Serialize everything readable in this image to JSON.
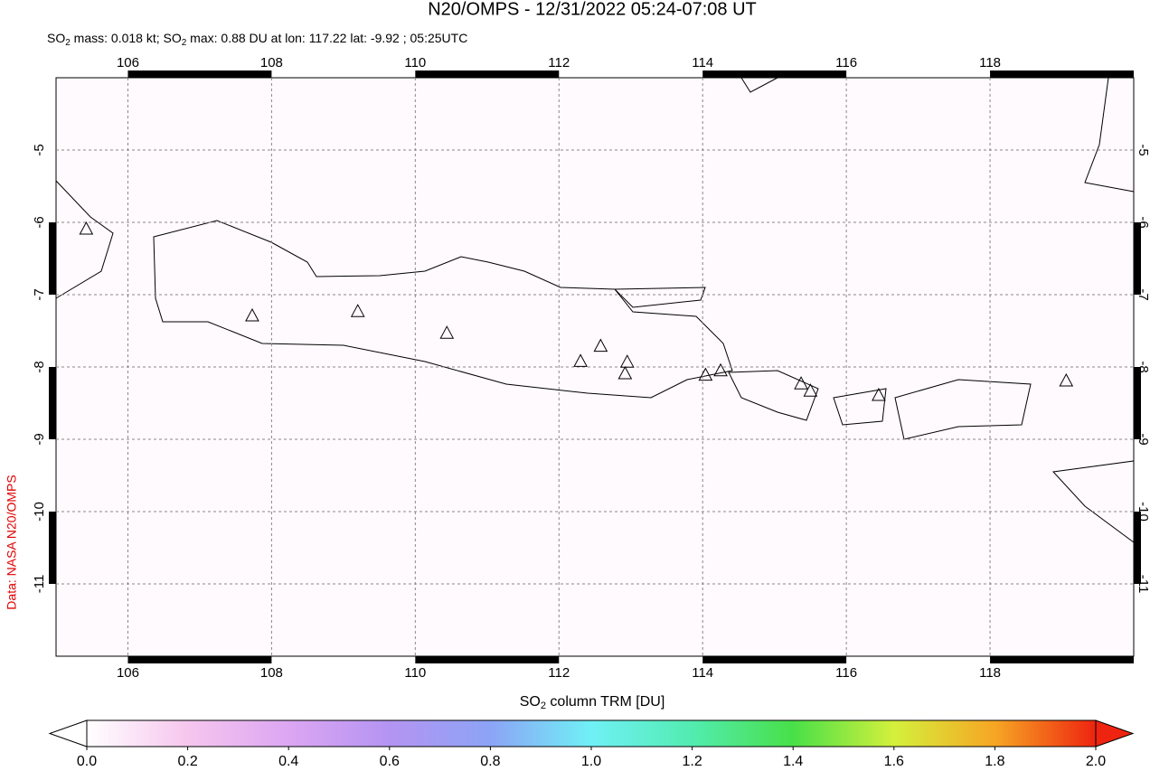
{
  "title": "N20/OMPS - 12/31/2022 05:24-07:08 UT",
  "subtitle": [
    "SO",
    "2",
    " mass: 0.018 kt; SO",
    "2",
    " max: 0.88 DU at lon: 117.22 lat: -9.92 ; 05:25UTC"
  ],
  "credit": "Data: NASA N20/OMPS",
  "map": {
    "xlim": [
      105,
      120
    ],
    "ylim": [
      -12,
      -4
    ],
    "xticks": [
      106,
      108,
      110,
      112,
      114,
      116,
      118
    ],
    "yticks": [
      -5,
      -6,
      -7,
      -8,
      -9,
      -10,
      -11
    ],
    "grid": true,
    "volcanoes": [
      [
        105.42,
        -6.1
      ],
      [
        107.73,
        -7.3
      ],
      [
        109.2,
        -7.24
      ],
      [
        110.44,
        -7.54
      ],
      [
        112.3,
        -7.93
      ],
      [
        112.58,
        -7.72
      ],
      [
        112.95,
        -7.94
      ],
      [
        112.92,
        -8.1
      ],
      [
        114.04,
        -8.12
      ],
      [
        114.25,
        -8.06
      ],
      [
        115.37,
        -8.24
      ],
      [
        115.5,
        -8.34
      ],
      [
        116.45,
        -8.4
      ],
      [
        119.06,
        -8.2
      ]
    ]
  },
  "colorbar": {
    "label": [
      "SO",
      "2",
      " column TRM [DU]"
    ],
    "lim": [
      0,
      2
    ],
    "ticks": [
      {
        "value": 0,
        "label": "0.0"
      },
      {
        "value": 0.2,
        "label": "0.2"
      },
      {
        "value": 0.4,
        "label": "0.4"
      },
      {
        "value": 0.6,
        "label": "0.6"
      },
      {
        "value": 0.8,
        "label": "0.8"
      },
      {
        "value": 1,
        "label": "1.0"
      },
      {
        "value": 1.2,
        "label": "1.2"
      },
      {
        "value": 1.4,
        "label": "1.4"
      },
      {
        "value": 1.6,
        "label": "1.6"
      },
      {
        "value": 1.8,
        "label": "1.8"
      },
      {
        "value": 2,
        "label": "2.0"
      }
    ],
    "colors": [
      "#ffffff",
      "#f6c6ee",
      "#dca6f2",
      "#b494f2",
      "#8ca4f6",
      "#70f0f6",
      "#52ecb0",
      "#48e048",
      "#d4f03c",
      "#f6a624",
      "#ee2410"
    ]
  }
}
